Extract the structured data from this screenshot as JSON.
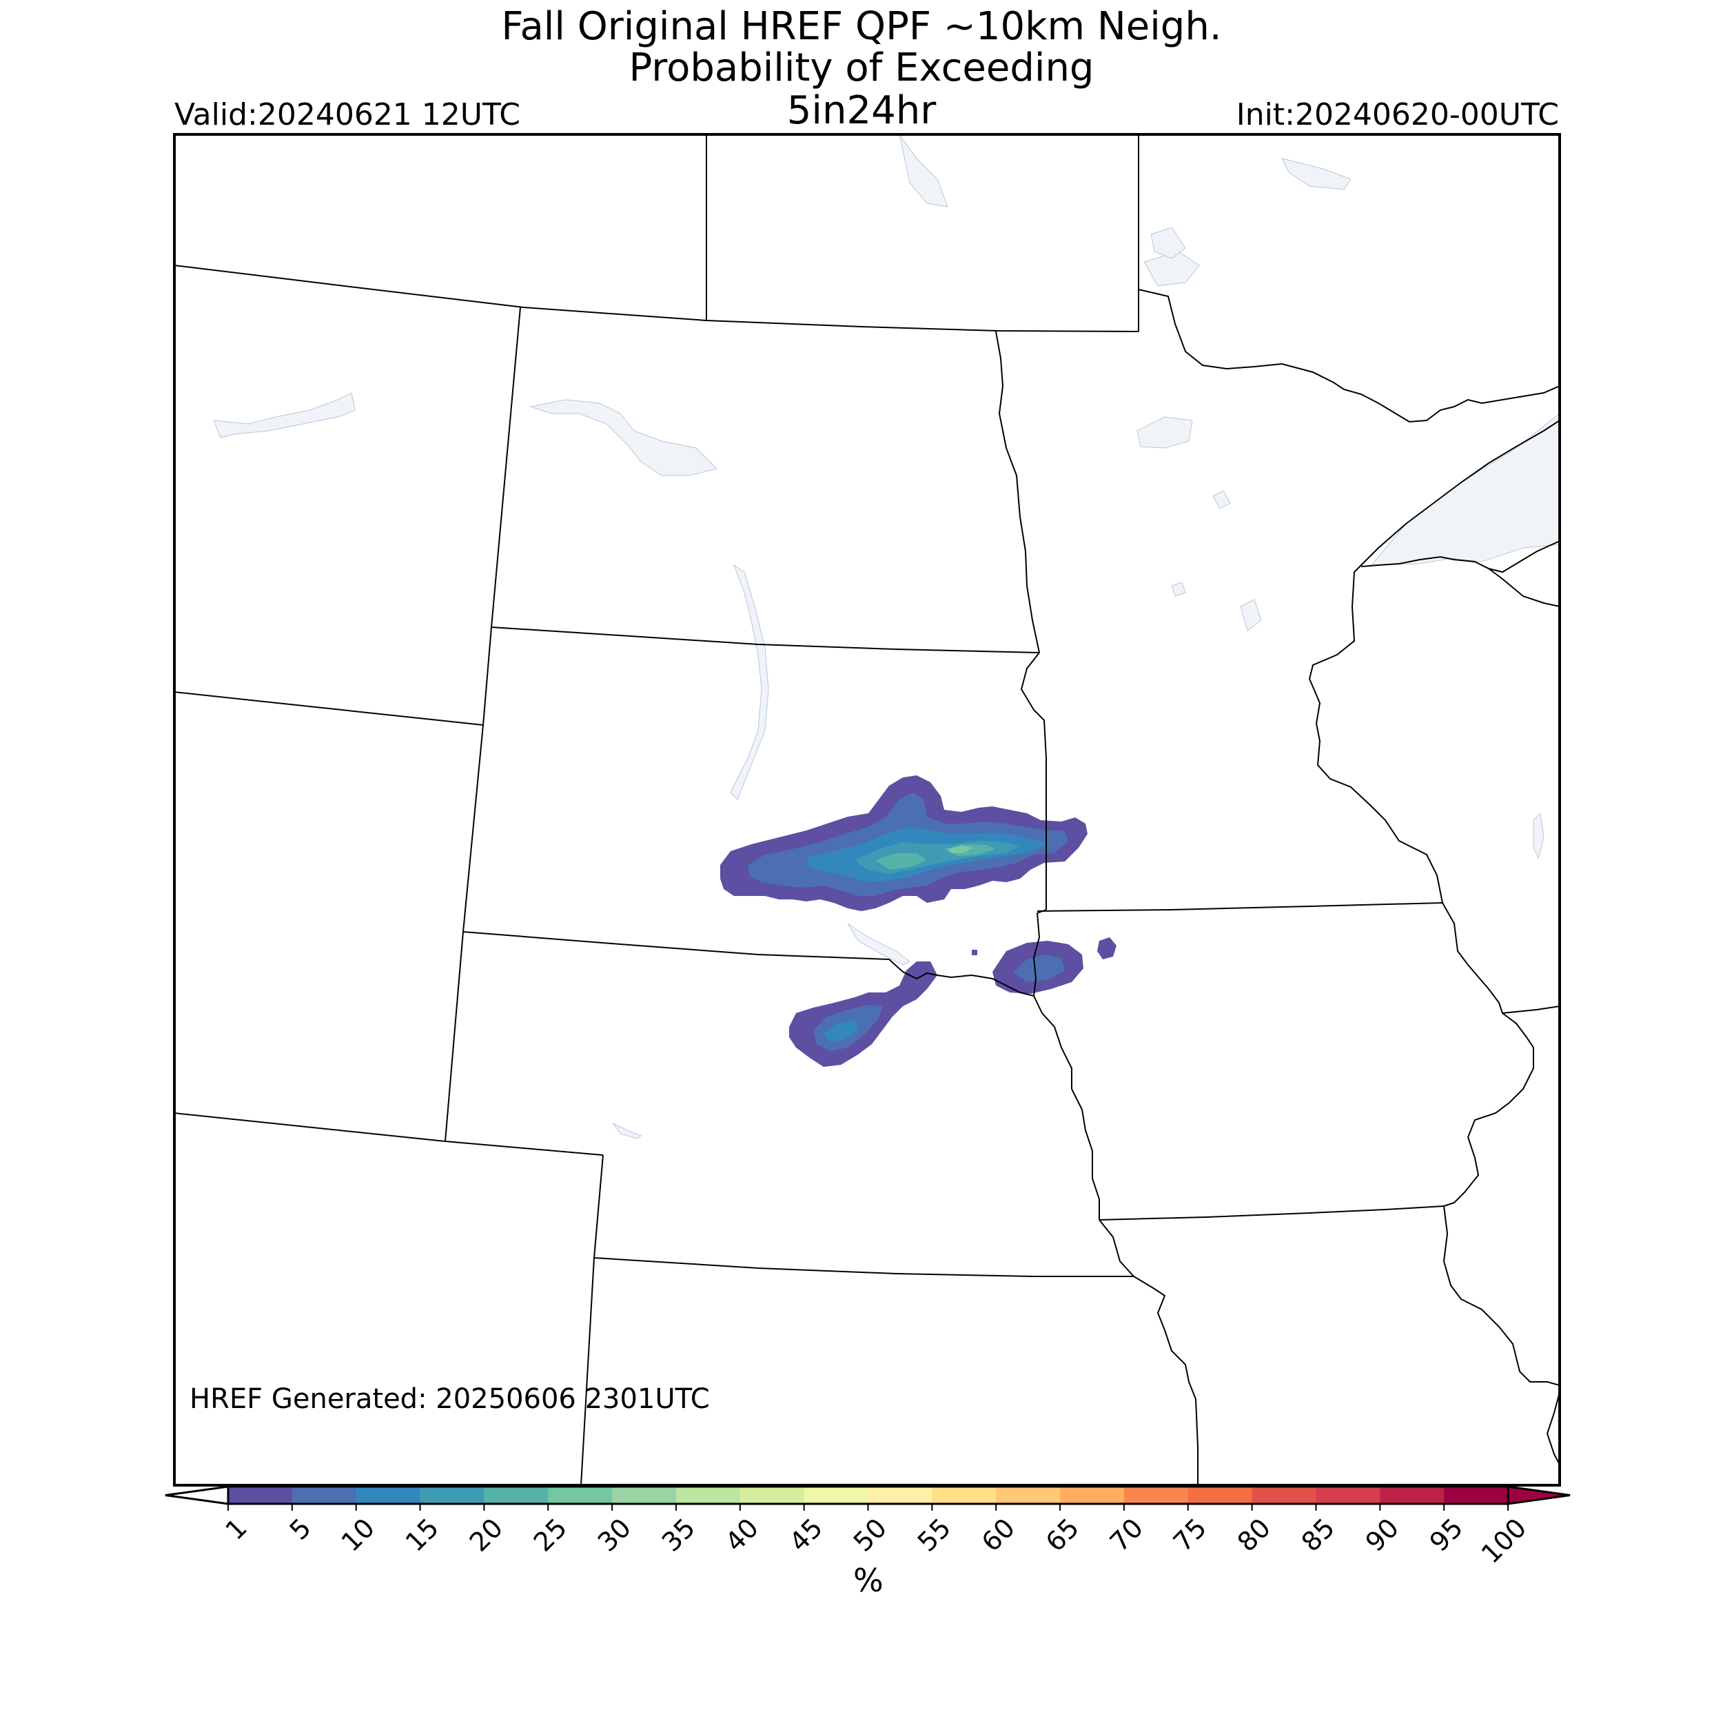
{
  "title": {
    "line1": "Fall Original HREF QPF ~10km Neigh.",
    "line2": "Probability of Exceeding",
    "line3": "5in24hr"
  },
  "valid": "Valid:20240621 12UTC",
  "init": "Init:20240620-00UTC",
  "generated": "HREF Generated: 20250606 2301UTC",
  "colorbar": {
    "label": "%",
    "ticks": [
      "1",
      "5",
      "10",
      "15",
      "20",
      "25",
      "30",
      "35",
      "40",
      "45",
      "50",
      "55",
      "60",
      "65",
      "70",
      "75",
      "80",
      "85",
      "90",
      "95",
      "100"
    ],
    "colors": [
      "#5e4fa2",
      "#4c6fb2",
      "#3288bd",
      "#3f9bb3",
      "#57b2aa",
      "#73c7a2",
      "#99d5a4",
      "#bde5a0",
      "#d6ee9b",
      "#eff8a6",
      "#fff0a6",
      "#fee08b",
      "#fdc877",
      "#fdae61",
      "#f7864e",
      "#f46d43",
      "#e3524a",
      "#d53e4f",
      "#bc2248",
      "#9e0142"
    ]
  },
  "map": {
    "water_color": "#f0f4f9",
    "border_color": "#000000"
  }
}
